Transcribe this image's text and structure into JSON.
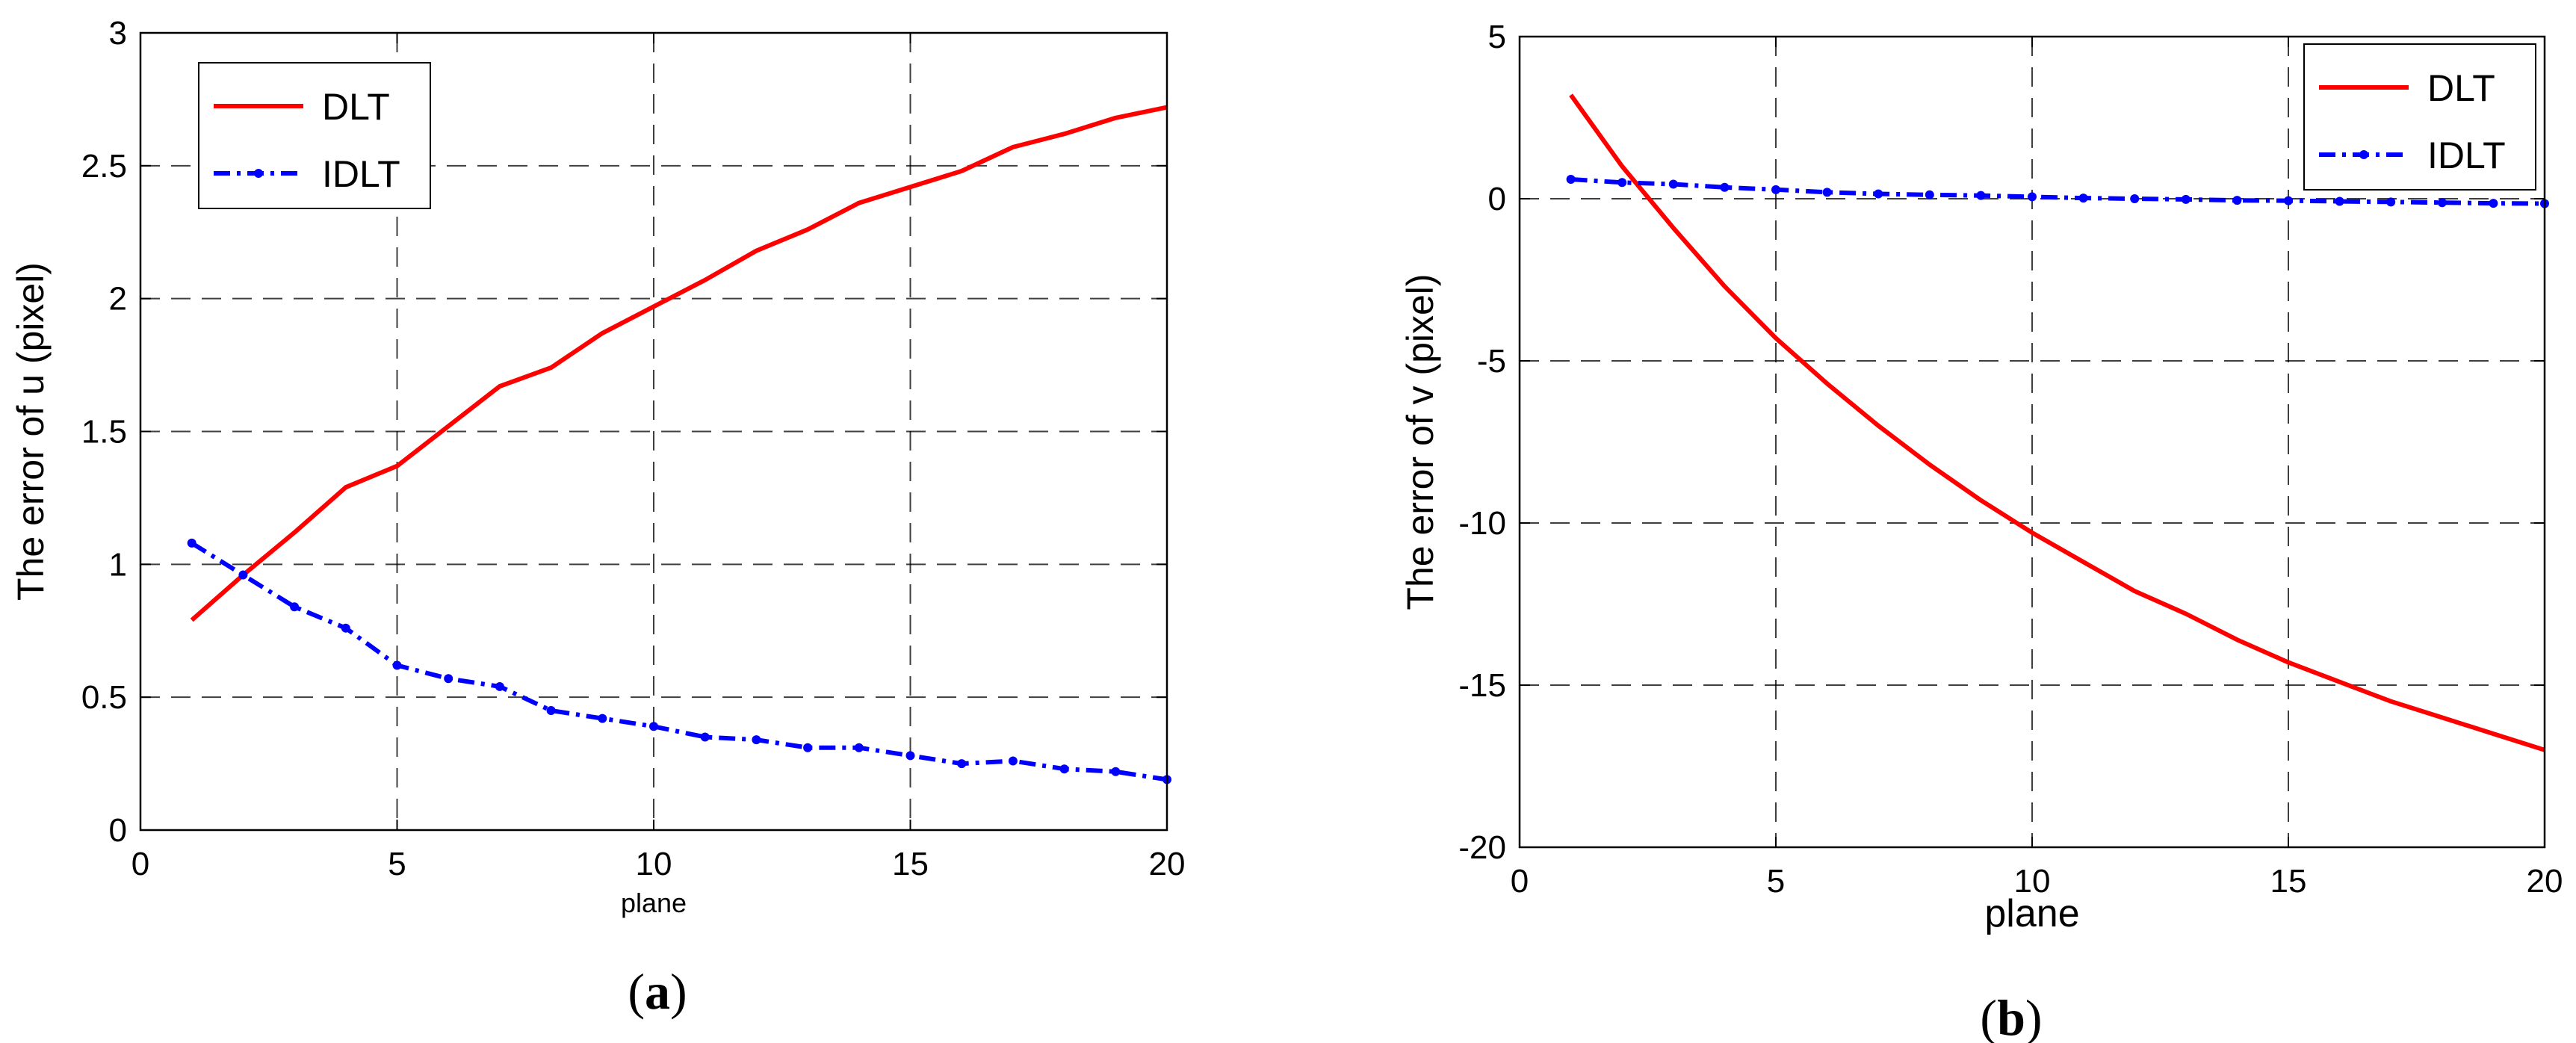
{
  "colors": {
    "dlt": "#ff0000",
    "idlt": "#0000ff",
    "grid": "#000000",
    "axis": "#000000"
  },
  "chart_data": [
    {
      "type": "line",
      "panel_label_letter": "a",
      "xlabel": "plane",
      "ylabel": "The error of u (pixel)",
      "xlim": [
        0,
        20
      ],
      "ylim": [
        0,
        3
      ],
      "xticks": [
        0,
        5,
        10,
        15,
        20
      ],
      "yticks": [
        0,
        0.5,
        1,
        1.5,
        2,
        2.5,
        3
      ],
      "ytick_labels": [
        "0",
        "0.5",
        "1",
        "1.5",
        "2",
        "2.5",
        "3"
      ],
      "grid": true,
      "legend_position": "top-left",
      "series": [
        {
          "name": "DLT",
          "color": "#ff0000",
          "line_style": "solid",
          "markers": false,
          "x": [
            1,
            2,
            3,
            4,
            5,
            6,
            7,
            8,
            9,
            10,
            11,
            12,
            13,
            14,
            15,
            16,
            17,
            18,
            19,
            20
          ],
          "y": [
            0.79,
            0.96,
            1.12,
            1.29,
            1.37,
            1.52,
            1.67,
            1.74,
            1.87,
            1.97,
            2.07,
            2.18,
            2.26,
            2.36,
            2.42,
            2.48,
            2.57,
            2.62,
            2.68,
            2.72
          ]
        },
        {
          "name": "IDLT",
          "color": "#0000ff",
          "line_style": "dashdot",
          "markers": true,
          "x": [
            1,
            2,
            3,
            4,
            5,
            6,
            7,
            8,
            9,
            10,
            11,
            12,
            13,
            14,
            15,
            16,
            17,
            18,
            19,
            20
          ],
          "y": [
            1.08,
            0.96,
            0.84,
            0.76,
            0.62,
            0.57,
            0.54,
            0.45,
            0.42,
            0.39,
            0.35,
            0.34,
            0.31,
            0.31,
            0.28,
            0.25,
            0.26,
            0.23,
            0.22,
            0.19
          ]
        }
      ]
    },
    {
      "type": "line",
      "panel_label_letter": "b",
      "xlabel": "plane",
      "ylabel": "The error of v (pixel)",
      "xlim": [
        0,
        20
      ],
      "ylim": [
        -20,
        5
      ],
      "xticks": [
        0,
        5,
        10,
        15,
        20
      ],
      "yticks": [
        -20,
        -15,
        -10,
        -5,
        0,
        5
      ],
      "ytick_labels": [
        "-20",
        "-15",
        "-10",
        "-5",
        "0",
        "5"
      ],
      "grid": true,
      "legend_position": "top-right",
      "series": [
        {
          "name": "DLT",
          "color": "#ff0000",
          "line_style": "solid",
          "markers": false,
          "x": [
            1,
            2,
            3,
            4,
            5,
            6,
            7,
            8,
            9,
            10,
            11,
            12,
            13,
            14,
            15,
            16,
            17,
            18,
            19,
            20
          ],
          "y": [
            3.2,
            1.0,
            -0.9,
            -2.7,
            -4.3,
            -5.7,
            -7.0,
            -8.2,
            -9.3,
            -10.3,
            -11.2,
            -12.1,
            -12.8,
            -13.6,
            -14.3,
            -14.9,
            -15.5,
            -16.0,
            -16.5,
            -17.0
          ]
        },
        {
          "name": "IDLT",
          "color": "#0000ff",
          "line_style": "dashdot",
          "markers": true,
          "x": [
            1,
            2,
            3,
            4,
            5,
            6,
            7,
            8,
            9,
            10,
            11,
            12,
            13,
            14,
            15,
            16,
            17,
            18,
            19,
            20
          ],
          "y": [
            0.6,
            0.5,
            0.45,
            0.35,
            0.28,
            0.2,
            0.15,
            0.12,
            0.1,
            0.06,
            0.02,
            0.0,
            -0.02,
            -0.05,
            -0.06,
            -0.08,
            -0.1,
            -0.12,
            -0.14,
            -0.15
          ]
        }
      ]
    }
  ]
}
